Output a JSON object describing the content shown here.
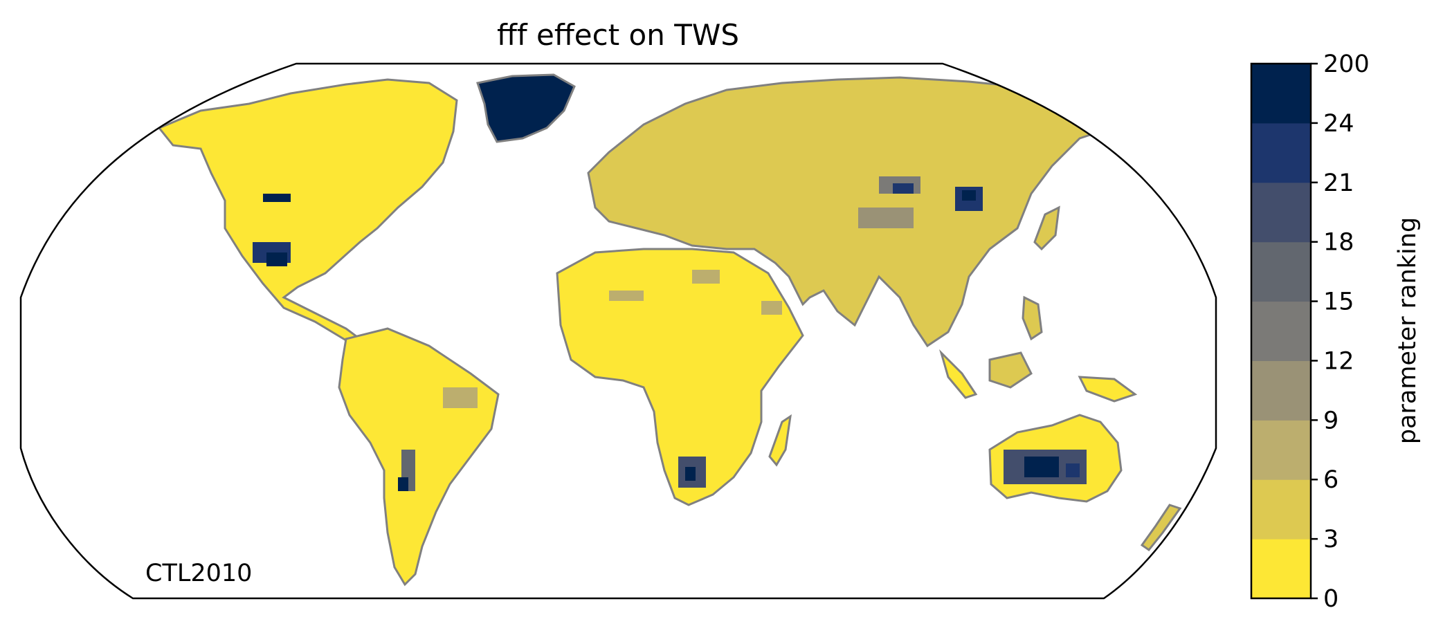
{
  "map": {
    "title": "fff effect on TWS",
    "run_label": "CTL2010",
    "projection": "Robinson",
    "coastline_color": "#808080",
    "ocean_color": "#ffffff"
  },
  "colorbar": {
    "label": "parameter ranking",
    "ticks": [
      "0",
      "3",
      "6",
      "9",
      "12",
      "15",
      "18",
      "21",
      "24",
      "200"
    ],
    "colors": [
      "#fde735",
      "#ddc951",
      "#bcae6e",
      "#9a9276",
      "#7b7a77",
      "#62676f",
      "#434e6c",
      "#1d366d",
      "#00224e"
    ]
  }
}
